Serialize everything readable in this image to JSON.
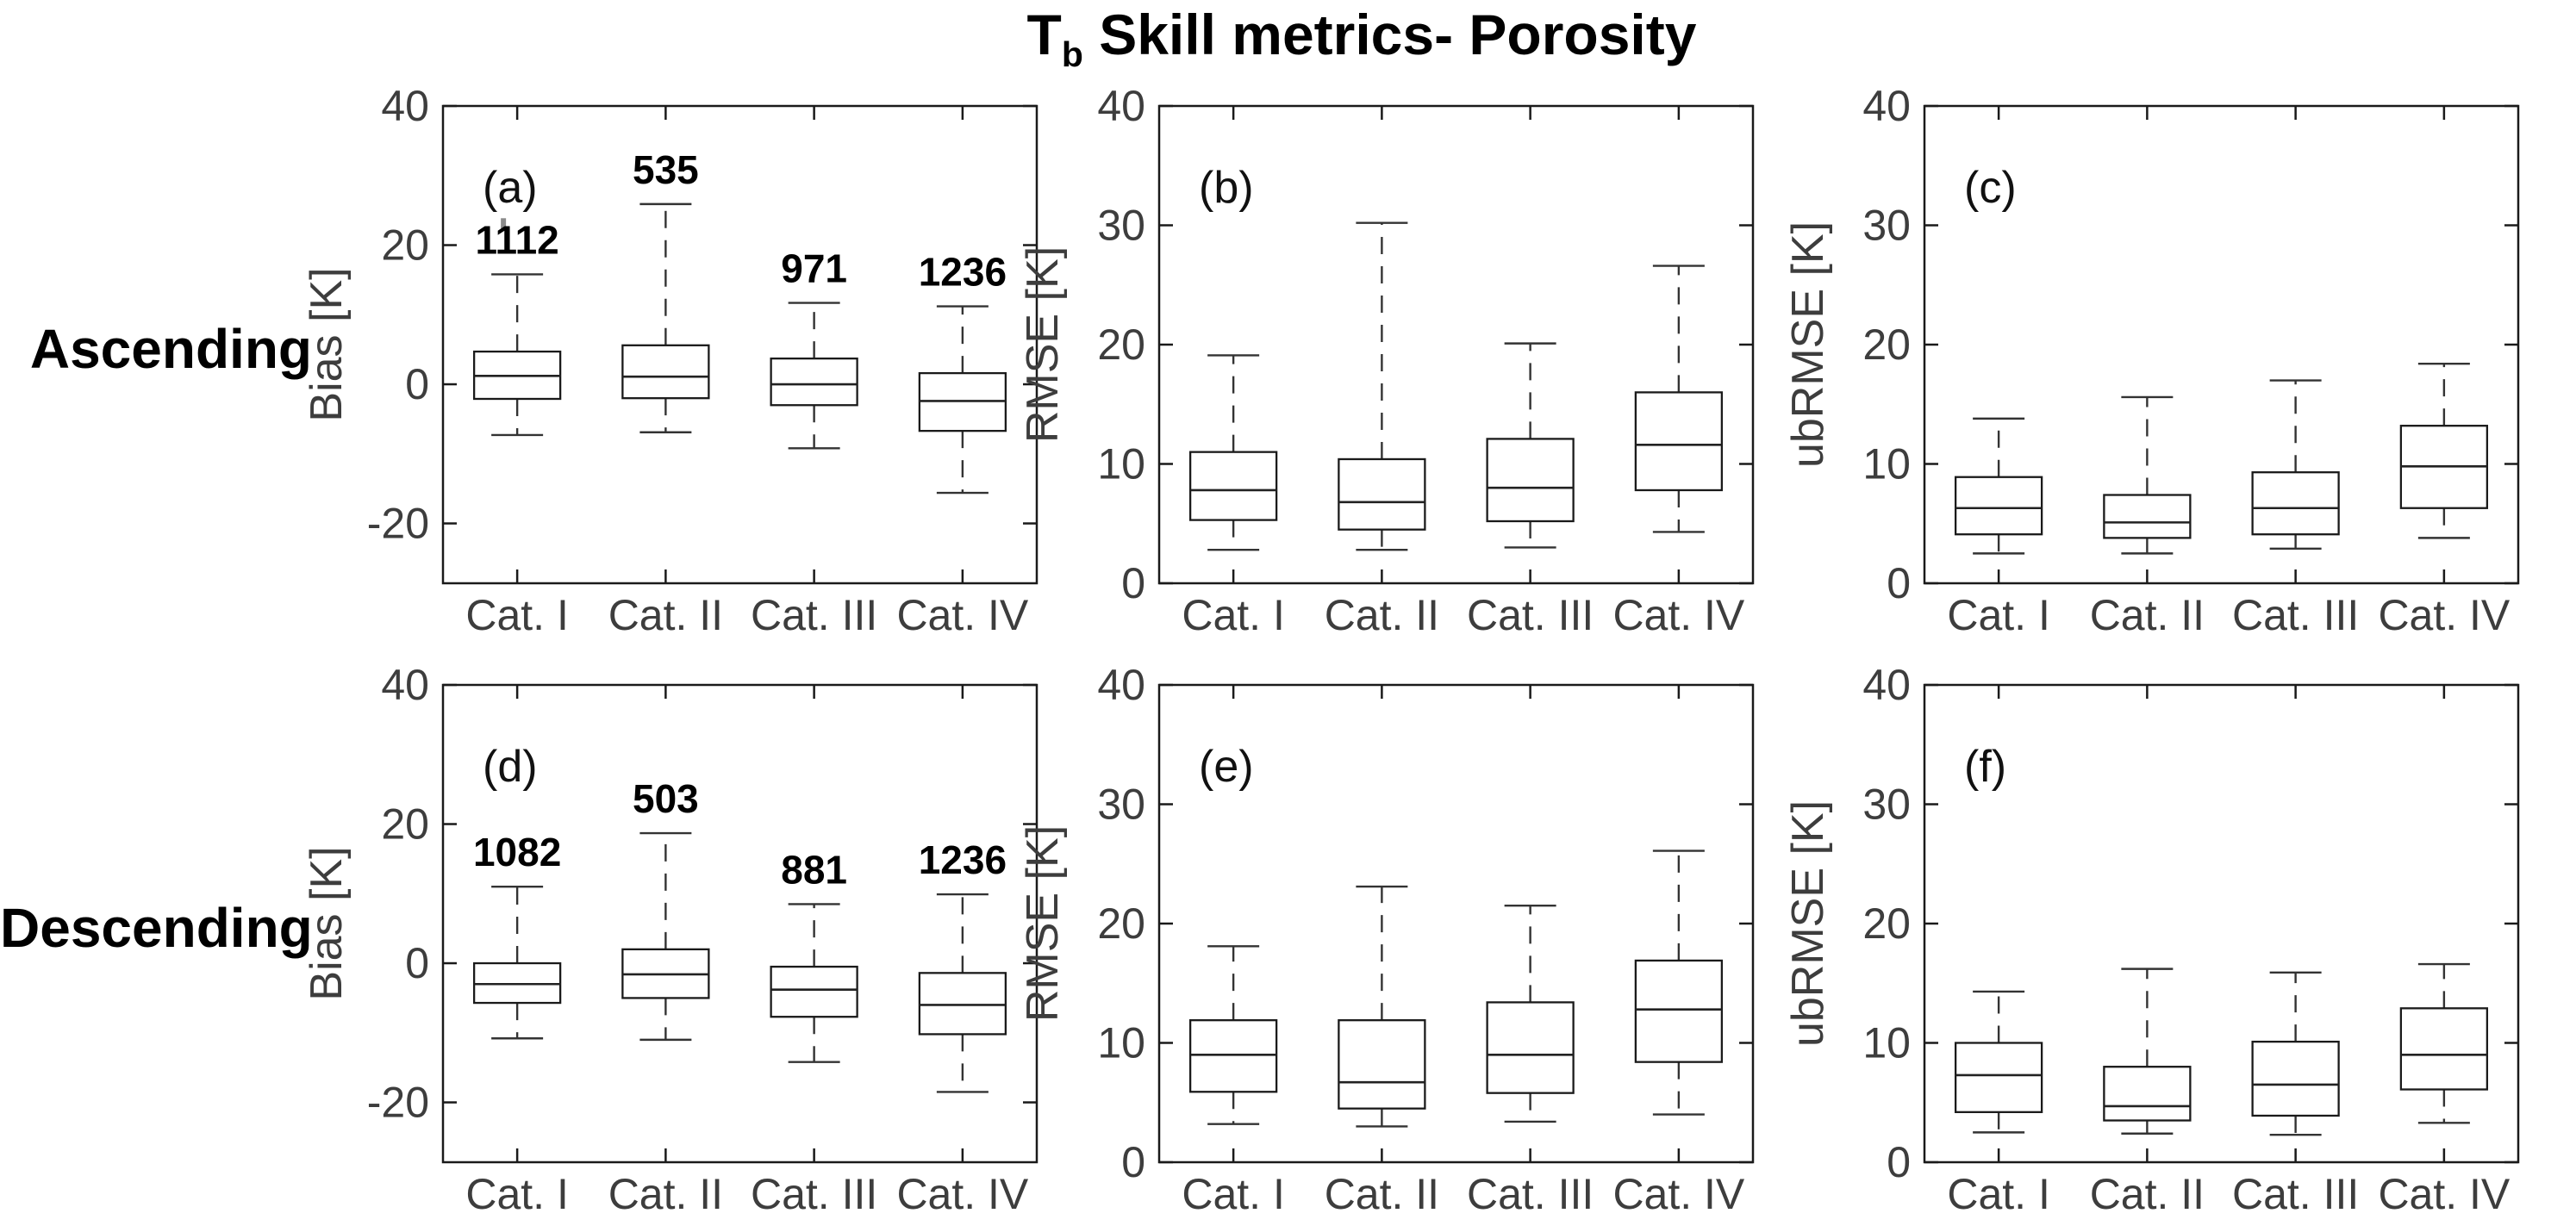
{
  "title": {
    "prefix": "T",
    "subscript": "b",
    "rest": " Skill metrics- Porosity"
  },
  "row_labels": [
    "Ascending",
    "Descending"
  ],
  "categories": [
    "Cat. I",
    "Cat. II",
    "Cat. III",
    "Cat. IV"
  ],
  "units": "K",
  "chart_data": {
    "type": "boxplot",
    "title": "Tb Skill metrics- Porosity",
    "grid": false,
    "legend": false,
    "categories": [
      "Cat. I",
      "Cat. II",
      "Cat. III",
      "Cat. IV"
    ],
    "panels": [
      {
        "letter": "(a)",
        "row": "Ascending",
        "metric": "Bias",
        "ylabel": "Bias [K]",
        "ylim": [
          -28.6,
          40
        ],
        "yticks": [
          -20,
          0,
          20,
          40
        ],
        "boxes": [
          {
            "category": "Cat. I",
            "count": 1112,
            "whisker_low": -7.3,
            "q1": -2.1,
            "median": 1.2,
            "q3": 4.7,
            "whisker_high": 15.8,
            "outliers": [
              23
            ]
          },
          {
            "category": "Cat. II",
            "count": 535,
            "whisker_low": -6.9,
            "q1": -2.0,
            "median": 1.1,
            "q3": 5.6,
            "whisker_high": 25.9,
            "outliers": []
          },
          {
            "category": "Cat. III",
            "count": 971,
            "whisker_low": -9.2,
            "q1": -3.0,
            "median": 0.0,
            "q3": 3.7,
            "whisker_high": 11.7,
            "outliers": []
          },
          {
            "category": "Cat. IV",
            "count": 1236,
            "whisker_low": -15.6,
            "q1": -6.7,
            "median": -2.4,
            "q3": 1.6,
            "whisker_high": 11.2,
            "outliers": []
          }
        ]
      },
      {
        "letter": "(b)",
        "row": "Ascending",
        "metric": "RMSE",
        "ylabel": "RMSE [K]",
        "ylim": [
          0,
          40
        ],
        "yticks": [
          0,
          10,
          20,
          30,
          40
        ],
        "boxes": [
          {
            "category": "Cat. I",
            "whisker_low": 2.8,
            "q1": 5.3,
            "median": 7.8,
            "q3": 11.0,
            "whisker_high": 19.1,
            "outliers": []
          },
          {
            "category": "Cat. II",
            "whisker_low": 2.8,
            "q1": 4.5,
            "median": 6.8,
            "q3": 10.4,
            "whisker_high": 30.2,
            "outliers": []
          },
          {
            "category": "Cat. III",
            "whisker_low": 3.0,
            "q1": 5.2,
            "median": 8.0,
            "q3": 12.1,
            "whisker_high": 20.1,
            "outliers": []
          },
          {
            "category": "Cat. IV",
            "whisker_low": 4.3,
            "q1": 7.8,
            "median": 11.6,
            "q3": 16.0,
            "whisker_high": 26.6,
            "outliers": []
          }
        ]
      },
      {
        "letter": "(c)",
        "row": "Ascending",
        "metric": "ubRMSE",
        "ylabel": "ubRMSE [K]",
        "ylim": [
          0,
          40
        ],
        "yticks": [
          0,
          10,
          20,
          30,
          40
        ],
        "boxes": [
          {
            "category": "Cat. I",
            "whisker_low": 2.5,
            "q1": 4.1,
            "median": 6.3,
            "q3": 8.9,
            "whisker_high": 13.8,
            "outliers": []
          },
          {
            "category": "Cat. II",
            "whisker_low": 2.5,
            "q1": 3.8,
            "median": 5.1,
            "q3": 7.4,
            "whisker_high": 15.6,
            "outliers": []
          },
          {
            "category": "Cat. III",
            "whisker_low": 2.9,
            "q1": 4.1,
            "median": 6.3,
            "q3": 9.3,
            "whisker_high": 17.0,
            "outliers": []
          },
          {
            "category": "Cat. IV",
            "whisker_low": 3.8,
            "q1": 6.3,
            "median": 9.8,
            "q3": 13.2,
            "whisker_high": 18.4,
            "outliers": []
          }
        ]
      },
      {
        "letter": "(d)",
        "row": "Descending",
        "metric": "Bias",
        "ylabel": "Bias [K]",
        "ylim": [
          -28.6,
          40
        ],
        "yticks": [
          -20,
          0,
          20,
          40
        ],
        "boxes": [
          {
            "category": "Cat. I",
            "count": 1082,
            "whisker_low": -10.8,
            "q1": -5.7,
            "median": -3.0,
            "q3": 0.0,
            "whisker_high": 11.0,
            "outliers": []
          },
          {
            "category": "Cat. II",
            "count": 503,
            "whisker_low": -11.0,
            "q1": -5.0,
            "median": -1.6,
            "q3": 2.0,
            "whisker_high": 18.7,
            "outliers": []
          },
          {
            "category": "Cat. III",
            "count": 881,
            "whisker_low": -14.2,
            "q1": -7.7,
            "median": -3.8,
            "q3": -0.5,
            "whisker_high": 8.5,
            "outliers": []
          },
          {
            "category": "Cat. IV",
            "count": 1236,
            "whisker_low": -18.5,
            "q1": -10.2,
            "median": -6.0,
            "q3": -1.4,
            "whisker_high": 9.9,
            "outliers": []
          }
        ]
      },
      {
        "letter": "(e)",
        "row": "Descending",
        "metric": "RMSE",
        "ylabel": "RMSE [K]",
        "ylim": [
          0,
          40
        ],
        "yticks": [
          0,
          10,
          20,
          30,
          40
        ],
        "boxes": [
          {
            "category": "Cat. I",
            "whisker_low": 3.2,
            "q1": 5.9,
            "median": 9.0,
            "q3": 11.9,
            "whisker_high": 18.1,
            "outliers": []
          },
          {
            "category": "Cat. II",
            "whisker_low": 3.0,
            "q1": 4.5,
            "median": 6.7,
            "q3": 11.9,
            "whisker_high": 23.1,
            "outliers": []
          },
          {
            "category": "Cat. III",
            "whisker_low": 3.4,
            "q1": 5.8,
            "median": 9.0,
            "q3": 13.4,
            "whisker_high": 21.5,
            "outliers": []
          },
          {
            "category": "Cat. IV",
            "whisker_low": 4.0,
            "q1": 8.4,
            "median": 12.8,
            "q3": 16.9,
            "whisker_high": 26.1,
            "outliers": []
          }
        ]
      },
      {
        "letter": "(f)",
        "row": "Descending",
        "metric": "ubRMSE",
        "ylabel": "ubRMSE [K]",
        "ylim": [
          0,
          40
        ],
        "yticks": [
          0,
          10,
          20,
          30,
          40
        ],
        "boxes": [
          {
            "category": "Cat. I",
            "whisker_low": 2.5,
            "q1": 4.2,
            "median": 7.3,
            "q3": 10.0,
            "whisker_high": 14.3,
            "outliers": []
          },
          {
            "category": "Cat. II",
            "whisker_low": 2.4,
            "q1": 3.5,
            "median": 4.7,
            "q3": 8.0,
            "whisker_high": 16.2,
            "outliers": []
          },
          {
            "category": "Cat. III",
            "whisker_low": 2.3,
            "q1": 3.9,
            "median": 6.5,
            "q3": 10.1,
            "whisker_high": 15.9,
            "outliers": []
          },
          {
            "category": "Cat. IV",
            "whisker_low": 3.3,
            "q1": 6.1,
            "median": 9.0,
            "q3": 12.9,
            "whisker_high": 16.6,
            "outliers": []
          }
        ]
      }
    ],
    "style": {
      "frame_color": "#1a1a1a",
      "tick_label_color": "#3d3d3d",
      "whisker_color": "#333333",
      "box_edge_color": "#1a1a1a",
      "median_color": "#222222",
      "count_color": "#000000",
      "outlier_color": "#8a8a8a",
      "background": "#ffffff"
    }
  }
}
